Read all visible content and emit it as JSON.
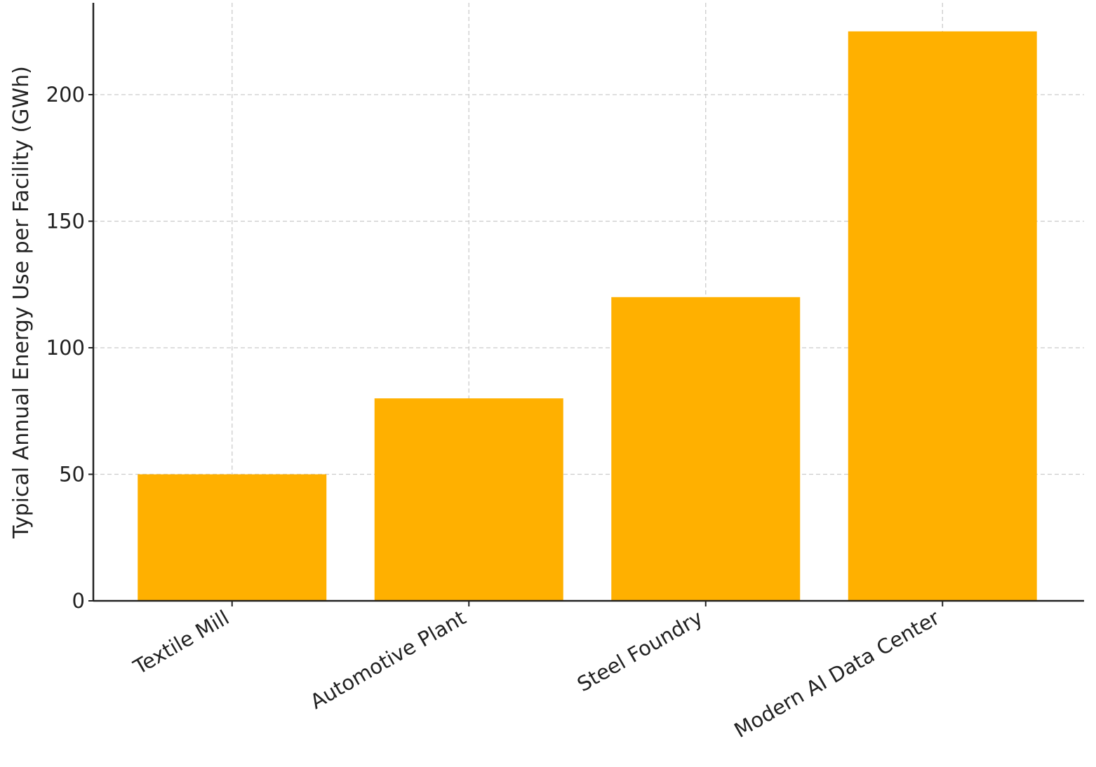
{
  "chart_data": {
    "type": "bar",
    "title": "",
    "xlabel": "",
    "ylabel": "Typical Annual Energy Use per Facility (GWh)",
    "categories": [
      "Textile Mill",
      "Automotive Plant",
      "Steel Foundry",
      "Modern AI Data Center"
    ],
    "values": [
      50,
      80,
      120,
      225
    ],
    "ylim": [
      0,
      236
    ],
    "yticks": [
      0,
      50,
      100,
      150,
      200
    ],
    "grid": true,
    "bar_color": "#FFB000",
    "legend": "none"
  }
}
